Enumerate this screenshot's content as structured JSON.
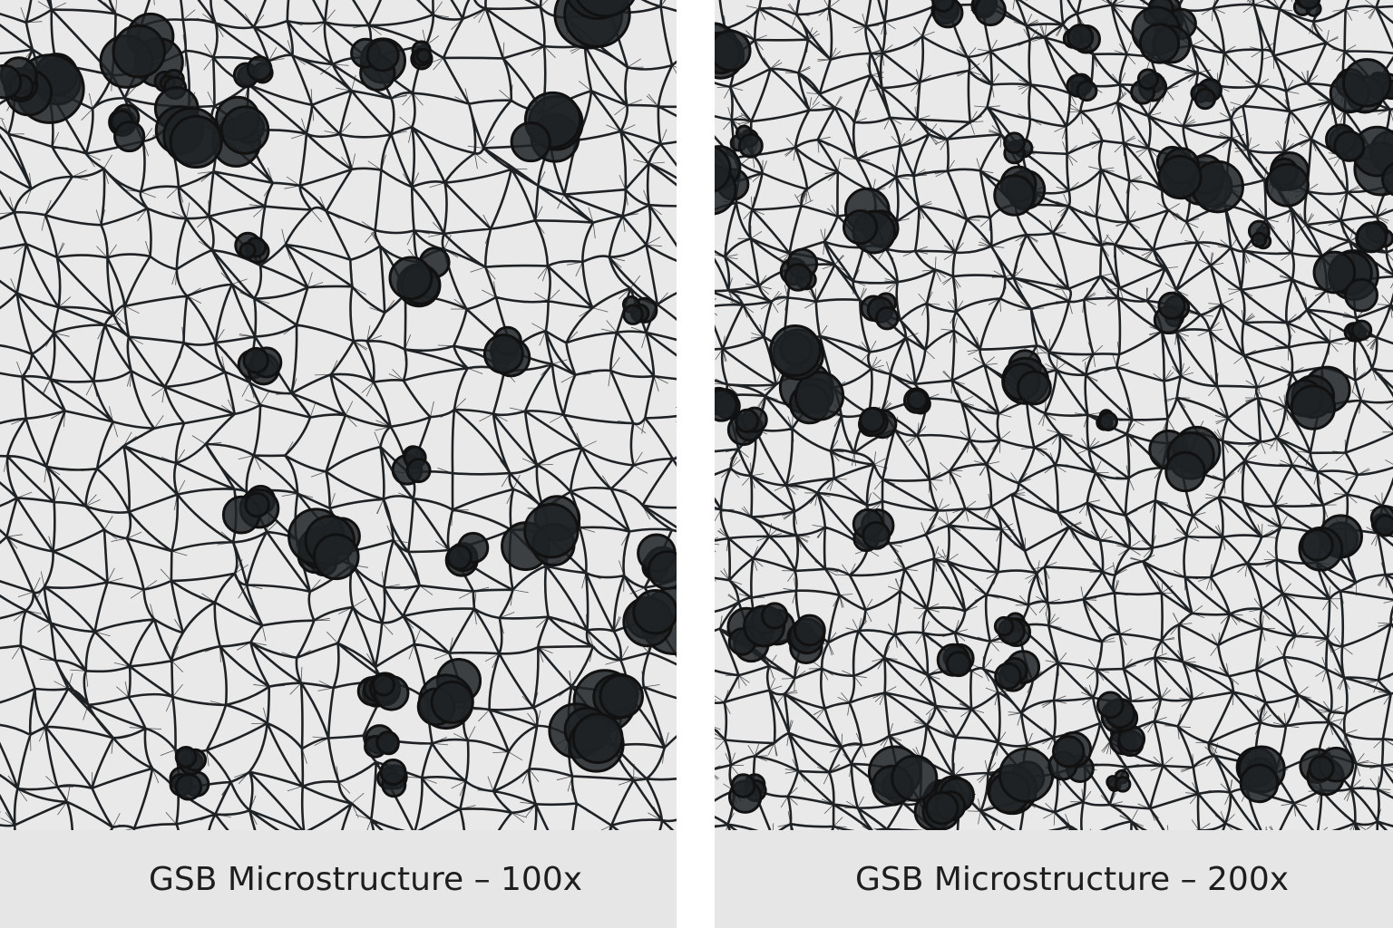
{
  "panels": [
    {
      "caption": "GSB Microstructure – 100x",
      "magnification": "100x"
    },
    {
      "caption": "GSB Microstructure – 200x",
      "magnification": "200x"
    }
  ],
  "colors": {
    "background": "#e9e9e9",
    "network": "#1f2225",
    "caption_band": "#e6e6e6",
    "divider": "#ffffff"
  }
}
